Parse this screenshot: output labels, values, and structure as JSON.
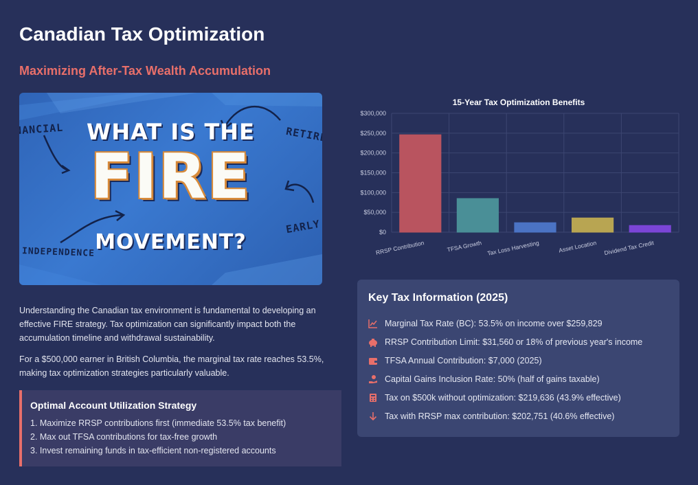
{
  "page": {
    "title": "Canadian Tax Optimization",
    "subtitle": "Maximizing After-Tax Wealth Accumulation"
  },
  "hero": {
    "line1": "WHAT IS THE",
    "line2": "FIRE",
    "line3": "MOVEMENT?",
    "word_financial": "NANCIAL",
    "word_retire": "RETIRE",
    "word_early": "EARLY",
    "word_independence": "INDEPENDENCE"
  },
  "intro": {
    "p1": "Understanding the Canadian tax environment is fundamental to developing an effective FIRE strategy. Tax optimization can significantly impact both the accumulation timeline and withdrawal sustainability.",
    "p2": "For a $500,000 earner in British Columbia, the marginal tax rate reaches 53.5%, making tax optimization strategies particularly valuable."
  },
  "strategy": {
    "heading": "Optimal Account Utilization Strategy",
    "items": [
      "1. Maximize RRSP contributions first (immediate 53.5% tax benefit)",
      "2. Max out TFSA contributions for tax-free growth",
      "3. Invest remaining funds in tax-efficient non-registered accounts"
    ]
  },
  "chart_data": {
    "type": "bar",
    "title": "15-Year Tax Optimization Benefits",
    "categories": [
      "RRSP Contribution",
      "TFSA Growth",
      "Tax Loss Harvesting",
      "Asset Location",
      "Dividend Tax Credit"
    ],
    "values": [
      246000,
      85000,
      24000,
      36000,
      17000
    ],
    "colors": [
      "#b9545f",
      "#4a8f97",
      "#4b73c4",
      "#b8a552",
      "#7b45d6"
    ],
    "ylim": [
      0,
      300000
    ],
    "yticks": [
      "$0",
      "$50,000",
      "$100,000",
      "$150,000",
      "$200,000",
      "$250,000",
      "$300,000"
    ],
    "grid": true,
    "xlabel": "",
    "ylabel": ""
  },
  "info": {
    "heading": "Key Tax Information (2025)",
    "rows": [
      {
        "icon": "chart-line-icon",
        "text": "Marginal Tax Rate (BC): 53.5% on income over $259,829"
      },
      {
        "icon": "piggy-bank-icon",
        "text": "RRSP Contribution Limit: $31,560 or 18% of previous year's income"
      },
      {
        "icon": "wallet-icon",
        "text": "TFSA Annual Contribution: $7,000 (2025)"
      },
      {
        "icon": "hand-holding-dollar-icon",
        "text": "Capital Gains Inclusion Rate: 50% (half of gains taxable)"
      },
      {
        "icon": "calculator-icon",
        "text": "Tax on $500k without optimization: $219,636 (43.9% effective)"
      },
      {
        "icon": "arrow-down-icon",
        "text": "Tax with RRSP max contribution: $202,751 (40.6% effective)"
      }
    ],
    "icon_color": "#e86f6a"
  }
}
